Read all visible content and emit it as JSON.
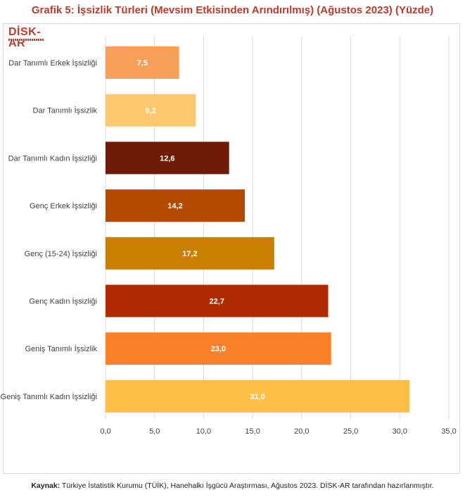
{
  "chart_data": {
    "type": "bar",
    "orientation": "horizontal",
    "title": "Grafik 5: İşsizlik Türleri (Mevsim Etkisinden Arındırılmış) (Ağustos 2023) (Yüzde)",
    "categories": [
      "Dar Tanımlı Erkek İşsizliği",
      "Dar Tanımlı İşsizlik",
      "Dar Tanımlı Kadın İşsizliği",
      "Genç Erkek İşsizliği",
      "Genç (15-24) İşsizliği",
      "Genç Kadın İşsizliği",
      "Geniş Tanımlı İşsizlik",
      "Geniş Tanımlı Kadın İşsizliği"
    ],
    "values": [
      7.5,
      9.2,
      12.6,
      14.2,
      17.2,
      22.7,
      23.0,
      31.0
    ],
    "value_labels": [
      "7,5",
      "9,2",
      "12,6",
      "14,2",
      "17,2",
      "22,7",
      "23,0",
      "31,0"
    ],
    "bar_colors": [
      "#f8a05a",
      "#fdc86f",
      "#6d1a06",
      "#b24b00",
      "#c98000",
      "#b02a00",
      "#fb8128",
      "#fec044"
    ],
    "xlim": [
      0,
      35
    ],
    "x_ticks": [
      0,
      5,
      10,
      15,
      20,
      25,
      30,
      35
    ],
    "x_tick_labels": [
      "0,0",
      "5,0",
      "10,0",
      "15,0",
      "20,0",
      "25,0",
      "30,0",
      "35,0"
    ],
    "grid": "vertical",
    "xlabel": "",
    "ylabel": ""
  },
  "logo": {
    "text": "DİSK-AR"
  },
  "source": {
    "label": "Kaynak:",
    "text": " Türkiye İstatistik Kurumu (TÜİK), Hanehalkı İşgücü Araştırması, Ağustos 2023. DİSK-AR tarafından hazırlanmıştır."
  },
  "colors": {
    "title": "#c0392b",
    "grid": "#d9d9d9",
    "label_text": "#404040",
    "value_text": "#ffffff"
  }
}
